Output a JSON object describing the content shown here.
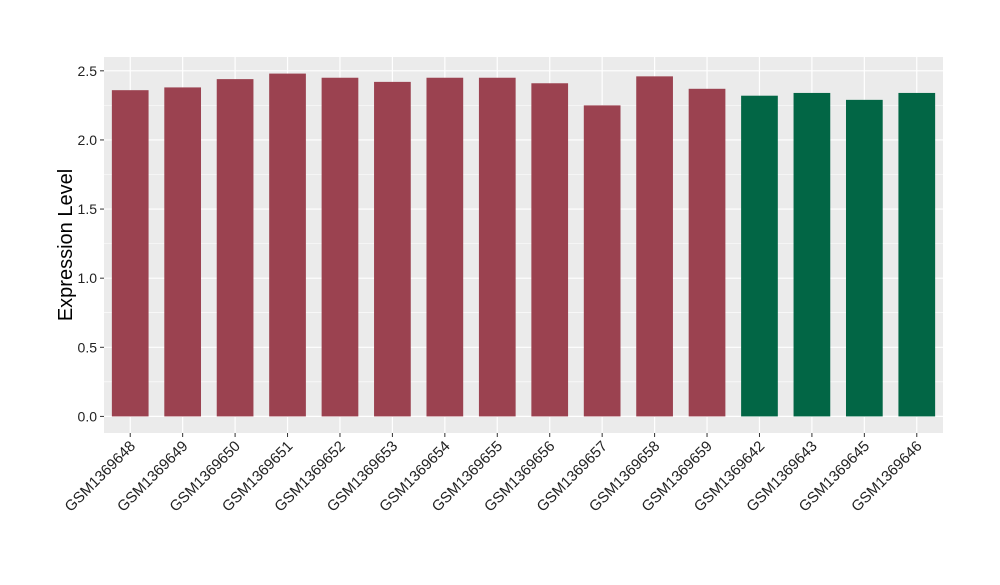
{
  "chart_data": {
    "type": "bar",
    "title": "",
    "xlabel": "",
    "ylabel": "Expression Level",
    "ylim": [
      -0.12,
      2.6
    ],
    "yticks": [
      "0.0",
      "0.5",
      "1.0",
      "1.5",
      "2.0",
      "2.5"
    ],
    "grid": true,
    "legend": "none",
    "categories": [
      "GSM1369648",
      "GSM1369649",
      "GSM1369650",
      "GSM1369651",
      "GSM1369652",
      "GSM1369653",
      "GSM1369654",
      "GSM1369655",
      "GSM1369656",
      "GSM1369657",
      "GSM1369658",
      "GSM1369659",
      "GSM1369642",
      "GSM1369643",
      "GSM1369645",
      "GSM1369646"
    ],
    "values": [
      2.36,
      2.38,
      2.44,
      2.48,
      2.45,
      2.42,
      2.45,
      2.45,
      2.41,
      2.25,
      2.46,
      2.37,
      2.32,
      2.34,
      2.29,
      2.34
    ],
    "groups": [
      "a",
      "a",
      "a",
      "a",
      "a",
      "a",
      "a",
      "a",
      "a",
      "a",
      "a",
      "a",
      "b",
      "b",
      "b",
      "b"
    ],
    "colors": {
      "a": "#9B4250",
      "b": "#026645"
    },
    "panel_color": "#EBEBEB"
  }
}
